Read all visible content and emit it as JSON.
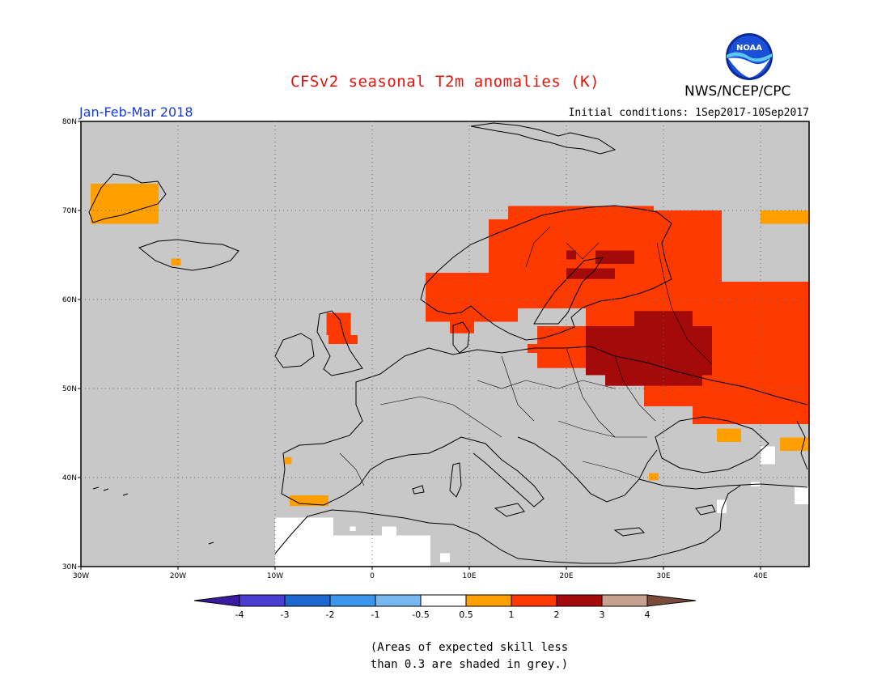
{
  "title": "CFSv2 seasonal T2m anomalies (K)",
  "agency": "NWS/NCEP/CPC",
  "logo_text": "NOAA",
  "period": "Jan-Feb-Mar 2018",
  "initial_conditions": "Initial conditions: 1Sep2017-10Sep2017",
  "map": {
    "lon_range": [
      -30,
      45
    ],
    "lat_range": [
      30,
      80
    ],
    "lat_ticks": [
      {
        "value": 80,
        "label": "80N"
      },
      {
        "value": 70,
        "label": "70N"
      },
      {
        "value": 60,
        "label": "60N"
      },
      {
        "value": 50,
        "label": "50N"
      },
      {
        "value": 40,
        "label": "40N"
      },
      {
        "value": 30,
        "label": "30N"
      }
    ],
    "lon_ticks": [
      {
        "value": -30,
        "label": "30W"
      },
      {
        "value": -20,
        "label": "20W"
      },
      {
        "value": -10,
        "label": "10W"
      },
      {
        "value": 0,
        "label": "0"
      },
      {
        "value": 10,
        "label": "10E"
      },
      {
        "value": 20,
        "label": "20E"
      },
      {
        "value": 30,
        "label": "30E"
      },
      {
        "value": 40,
        "label": "40E"
      }
    ],
    "background_color": "#c8c8c8"
  },
  "colorbar": {
    "colors": [
      "#3a1aa0",
      "#4a3ed0",
      "#1e66d0",
      "#3c96ee",
      "#78b8f0",
      "#ffffff",
      "#ffa000",
      "#ff3a00",
      "#a50a0a",
      "#c8a090",
      "#7a4a3a"
    ],
    "labels": [
      "-4",
      "-3",
      "-2",
      "-1",
      "-0.5",
      "0.5",
      "1",
      "2",
      "3",
      "4"
    ]
  },
  "anomaly_regions": [
    {
      "level": "1",
      "color": "#ffa000",
      "lon": [
        -29,
        -22
      ],
      "lat": [
        68.5,
        73
      ]
    },
    {
      "level": "1",
      "color": "#ffa000",
      "lon": [
        -20.7,
        -19.7
      ],
      "lat": [
        63.8,
        64.6
      ]
    },
    {
      "level": "1",
      "color": "#ffa000",
      "lon": [
        -8.5,
        -4.5
      ],
      "lat": [
        36.8,
        38
      ]
    },
    {
      "level": "1",
      "color": "#ffa000",
      "lon": [
        -9,
        -8.3
      ],
      "lat": [
        41.5,
        42.3
      ]
    },
    {
      "level": "1",
      "color": "#ffa000",
      "lon": [
        35.5,
        38
      ],
      "lat": [
        44,
        45.5
      ]
    },
    {
      "level": "1",
      "color": "#ffa000",
      "lon": [
        40,
        45
      ],
      "lat": [
        68.5,
        70
      ]
    },
    {
      "level": "1",
      "color": "#ffa000",
      "lon": [
        42,
        45
      ],
      "lat": [
        43,
        44.5
      ]
    },
    {
      "level": "1",
      "color": "#ffa000",
      "lon": [
        28.5,
        29.5
      ],
      "lat": [
        39.7,
        40.5
      ]
    },
    {
      "level": "2",
      "color": "#ff3a00",
      "lon": [
        5.5,
        15
      ],
      "lat": [
        57.5,
        63
      ]
    },
    {
      "level": "2",
      "color": "#ff3a00",
      "lon": [
        12,
        26
      ],
      "lat": [
        59,
        69
      ]
    },
    {
      "level": "2",
      "color": "#ff3a00",
      "lon": [
        14,
        29
      ],
      "lat": [
        66,
        70.5
      ]
    },
    {
      "level": "2",
      "color": "#ff3a00",
      "lon": [
        22,
        36
      ],
      "lat": [
        55,
        70
      ]
    },
    {
      "level": "2",
      "color": "#ff3a00",
      "lon": [
        33,
        45
      ],
      "lat": [
        46,
        62
      ]
    },
    {
      "level": "2",
      "color": "#ff3a00",
      "lon": [
        28,
        40
      ],
      "lat": [
        48,
        56
      ]
    },
    {
      "level": "2",
      "color": "#ff3a00",
      "lon": [
        17,
        30
      ],
      "lat": [
        52.3,
        57
      ]
    },
    {
      "level": "2",
      "color": "#ff3a00",
      "lon": [
        -4.7,
        -2.2
      ],
      "lat": [
        56,
        58.5
      ]
    },
    {
      "level": "2",
      "color": "#ff3a00",
      "lon": [
        -4.5,
        -1.5
      ],
      "lat": [
        55,
        56
      ]
    },
    {
      "level": "2",
      "color": "#ff3a00",
      "lon": [
        8,
        10.5
      ],
      "lat": [
        56.2,
        57.5
      ]
    },
    {
      "level": "2",
      "color": "#ff3a00",
      "lon": [
        16,
        20
      ],
      "lat": [
        54,
        55
      ]
    },
    {
      "level": "3",
      "color": "#a50a0a",
      "lon": [
        22,
        35
      ],
      "lat": [
        51.5,
        57
      ]
    },
    {
      "level": "3",
      "color": "#a50a0a",
      "lon": [
        24,
        34
      ],
      "lat": [
        50.3,
        52.5
      ]
    },
    {
      "level": "3",
      "color": "#a50a0a",
      "lon": [
        27,
        33
      ],
      "lat": [
        57,
        58.7
      ]
    },
    {
      "level": "3",
      "color": "#a50a0a",
      "lon": [
        20,
        25
      ],
      "lat": [
        62.3,
        63.5
      ]
    },
    {
      "level": "3",
      "color": "#a50a0a",
      "lon": [
        23,
        27
      ],
      "lat": [
        64,
        65.5
      ]
    },
    {
      "level": "3",
      "color": "#a50a0a",
      "lon": [
        20,
        21
      ],
      "lat": [
        64.5,
        65.5
      ]
    }
  ],
  "low_skill_white_regions": [
    {
      "lon": [
        -10,
        6
      ],
      "lat": [
        30,
        33.5
      ]
    },
    {
      "lon": [
        -10,
        -4
      ],
      "lat": [
        33.5,
        35.5
      ]
    },
    {
      "lon": [
        1,
        2.5
      ],
      "lat": [
        33,
        34.5
      ]
    },
    {
      "lon": [
        7,
        8
      ],
      "lat": [
        30.5,
        31.5
      ]
    },
    {
      "lon": [
        -27.5,
        -25
      ],
      "lat": [
        72,
        73
      ]
    },
    {
      "lon": [
        40,
        41.5
      ],
      "lat": [
        41.5,
        43.5
      ]
    },
    {
      "lon": [
        43.5,
        45
      ],
      "lat": [
        37,
        39
      ]
    },
    {
      "lon": [
        39,
        40
      ],
      "lat": [
        39,
        39.5
      ]
    },
    {
      "lon": [
        35.5,
        36.5
      ],
      "lat": [
        36,
        37.5
      ]
    },
    {
      "lon": [
        -2.3,
        -1.7
      ],
      "lat": [
        34,
        34.5
      ]
    }
  ],
  "skill_note_line1": "(Areas of expected skill less",
  "skill_note_line2": "than 0.3 are shaded in grey.)"
}
